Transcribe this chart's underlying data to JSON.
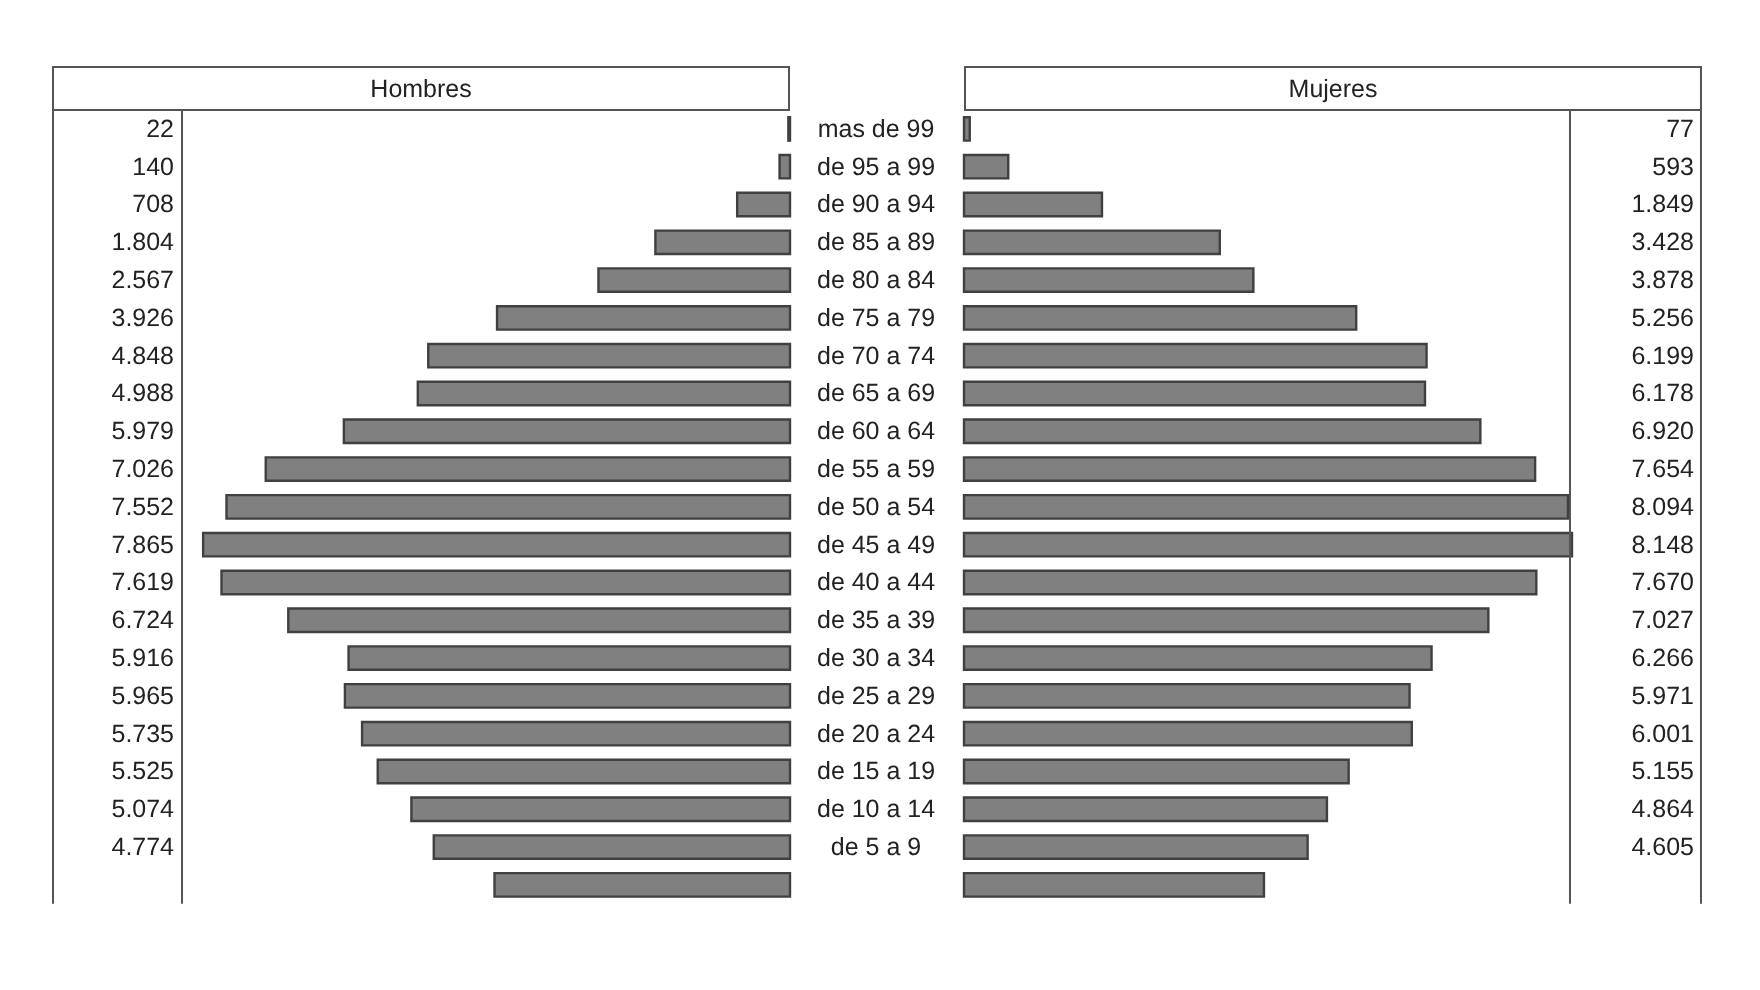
{
  "chart_data": [
    {
      "type": "bar",
      "orientation": "horizontal",
      "title": "Hombres",
      "tick_labels": "y",
      "color": "#808080",
      "categories": [
        "mas de 99",
        "de 95 a 99",
        "de 90 a 94",
        "de 85 a 89",
        "de 80 a 84",
        "de 75 a 79",
        "de 70 a 74",
        "de 65 a 69",
        "de 60 a 64",
        "de 55 a 59",
        "de 50 a 54",
        "de 45 a 49",
        "de 40 a 44",
        "de 35 a 39",
        "de 30 a 34",
        "de 25 a 29",
        "de 20 a 24",
        "de 15 a 19",
        "de 10 a 14",
        "de 5 a 9",
        null
      ],
      "values": [
        22,
        140,
        708,
        1804,
        2567,
        3926,
        4848,
        4988,
        5979,
        7026,
        7552,
        7865,
        7619,
        6724,
        5916,
        5965,
        5735,
        5525,
        5074,
        4774,
        3960
      ],
      "value_labels": [
        "22",
        "140",
        "708",
        "1.804",
        "2.567",
        "3.926",
        "4.848",
        "4.988",
        "5.979",
        "7.026",
        "7.552",
        "7.865",
        "7.619",
        "6.724",
        "5.916",
        "5.965",
        "5.735",
        "5.525",
        "5.074",
        "4.774",
        null
      ]
    },
    {
      "type": "bar",
      "orientation": "horizontal",
      "title": "Mujeres",
      "tick_labels": false,
      "color": "#808080",
      "categories": [
        "mas de 99",
        "de 95 a 99",
        "de 90 a 94",
        "de 85 a 89",
        "de 80 a 84",
        "de 75 a 79",
        "de 70 a 74",
        "de 65 a 69",
        "de 60 a 64",
        "de 55 a 59",
        "de 50 a 54",
        "de 45 a 49",
        "de 40 a 44",
        "de 35 a 39",
        "de 30 a 34",
        "de 25 a 29",
        "de 20 a 24",
        "de 15 a 19",
        "de 10 a 14",
        "de 5 a 9",
        null
      ],
      "values": [
        77,
        593,
        1849,
        3428,
        3878,
        5256,
        6199,
        6178,
        6920,
        7654,
        8094,
        8148,
        7670,
        7027,
        6266,
        5971,
        6001,
        5155,
        4864,
        4605,
        4020
      ],
      "value_labels": [
        "77",
        "593",
        "1.849",
        "3.428",
        "3.878",
        "5.256",
        "6.199",
        "6.178",
        "6.920",
        "7.654",
        "8.094",
        "8.148",
        "7.670",
        "7.027",
        "6.266",
        "5.971",
        "6.001",
        "5.155",
        "4.864",
        "4.605",
        null
      ]
    }
  ]
}
